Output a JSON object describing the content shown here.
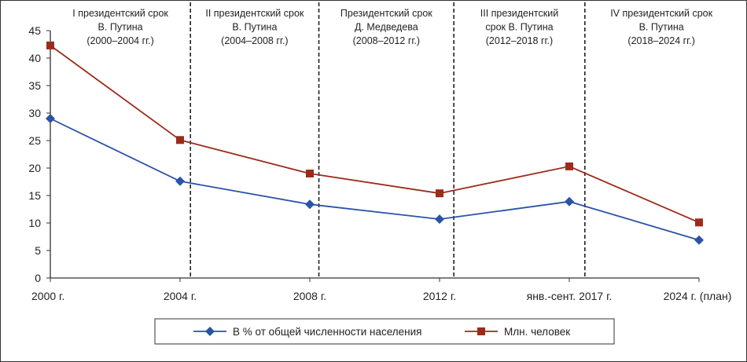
{
  "chart_data": {
    "type": "line",
    "title": "",
    "xlabel": "",
    "ylabel": "",
    "categories": [
      "2000 г.",
      "2004 г.",
      "2008 г.",
      "2012 г.",
      "янв.-сент. 2017 г.",
      "2024 г. (план)"
    ],
    "ylim": [
      0,
      45
    ],
    "yticks": [
      0,
      5,
      10,
      15,
      20,
      25,
      30,
      35,
      40,
      45
    ],
    "grid": false,
    "legend_position": "bottom",
    "series": [
      {
        "name": "В % от общей численности населения",
        "color": "#2a52a8",
        "marker": "diamond",
        "values": [
          29.0,
          17.6,
          13.4,
          10.7,
          13.9,
          6.9
        ]
      },
      {
        "name": "Млн. человек",
        "color": "#9b2c1c",
        "marker": "square",
        "values": [
          42.3,
          25.1,
          19.0,
          15.4,
          20.3,
          10.1
        ]
      }
    ],
    "periods": [
      {
        "lines": [
          "I президентский срок",
          "В. Путина",
          "(2000–2004 гг.)"
        ],
        "from": 0,
        "to": 1.08
      },
      {
        "lines": [
          "II президентский срок",
          "В. Путина",
          "(2004–2008 гг.)"
        ],
        "from": 1.08,
        "to": 2.07
      },
      {
        "lines": [
          "Президентский срок",
          "Д. Медведева",
          "(2008–2012 гг.)"
        ],
        "from": 2.07,
        "to": 3.11
      },
      {
        "lines": [
          "III президентский",
          "срок В. Путина",
          "(2012–2018 гг.)"
        ],
        "from": 3.11,
        "to": 4.12
      },
      {
        "lines": [
          "IV президентский срок",
          "В. Путина",
          "(2018–2024 гг.)"
        ],
        "from": 4.12,
        "to": 5.3
      }
    ],
    "dividers": [
      1.08,
      2.07,
      3.11,
      4.12
    ]
  }
}
